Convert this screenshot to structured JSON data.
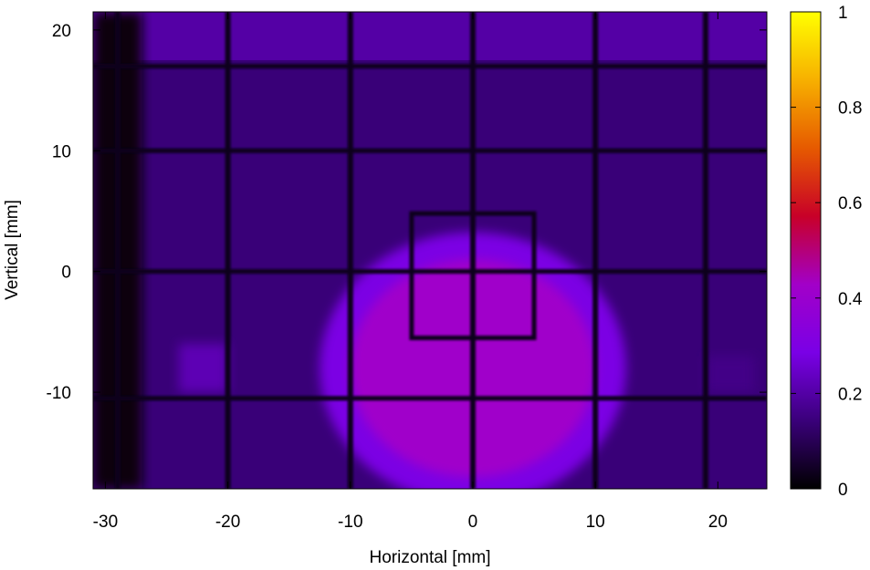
{
  "chart_data": {
    "type": "heatmap",
    "title": "",
    "xlabel": "Horizontal [mm]",
    "ylabel": "Vertical [mm]",
    "xlim": [
      -31,
      24
    ],
    "ylim": [
      -18,
      21.5
    ],
    "x_ticks": [
      -30,
      -20,
      -10,
      0,
      10,
      20
    ],
    "y_ticks": [
      -10,
      0,
      10,
      20
    ],
    "colorbar": {
      "range": [
        0,
        1
      ],
      "ticks": [
        0,
        0.2,
        0.4,
        0.6,
        0.8,
        1
      ],
      "tick_labels": [
        "0",
        "0.2",
        "0.4",
        "0.6",
        "0.8",
        "1"
      ],
      "colormap": [
        "#000000",
        "#3a007a",
        "#7a00e6",
        "#a200c8",
        "#c80028",
        "#e65a00",
        "#f7b000",
        "#ffff00"
      ]
    },
    "field": {
      "background_level": 0.14,
      "top_band": {
        "y": [
          17.5,
          21.5
        ],
        "level": 0.2
      },
      "left_dark_edge": {
        "x": [
          -31,
          -27
        ],
        "level": 0.02
      },
      "central_lobe": {
        "center": [
          0,
          -8
        ],
        "radius_x": 10,
        "radius_y": 9,
        "level": 0.42
      },
      "left_patch": {
        "x": [
          -24,
          -20
        ],
        "y": [
          -10,
          -6
        ],
        "level": 0.22
      },
      "right_patch": {
        "x": [
          19,
          23
        ],
        "y": [
          -10,
          -7
        ],
        "level": 0.16
      },
      "wires": {
        "vertical_x": [
          -29,
          -20,
          -10,
          0,
          10,
          19
        ],
        "horizontal_y": [
          17,
          10,
          0,
          -10.5
        ],
        "box": {
          "x": [
            -5,
            5
          ],
          "y": [
            -5.5,
            4.8
          ]
        },
        "level": 0.03
      }
    }
  }
}
